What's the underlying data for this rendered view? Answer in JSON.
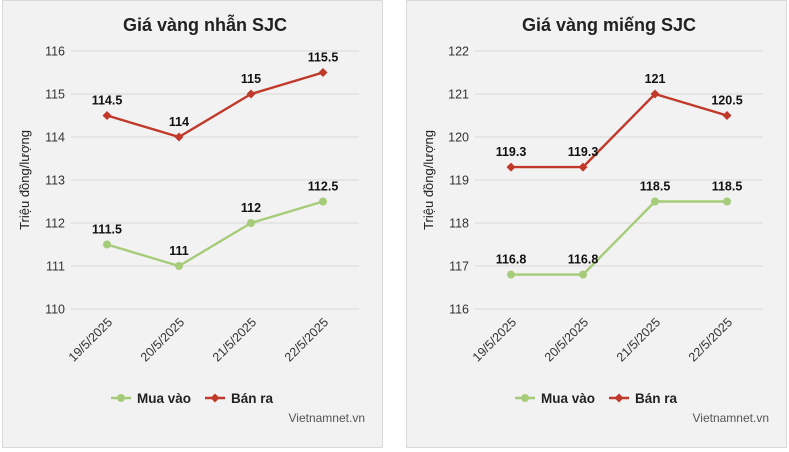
{
  "chart_data": [
    {
      "type": "line",
      "title": "Giá vàng nhẫn SJC",
      "ylabel": "Triệu đồng/lượng",
      "categories": [
        "19/5/2025",
        "20/5/2025",
        "21/5/2025",
        "22/5/2025"
      ],
      "ylim": [
        110,
        116
      ],
      "yticks": [
        "110",
        "111",
        "112",
        "113",
        "114",
        "115",
        "116"
      ],
      "series": [
        {
          "name": "Mua vào",
          "color": "#a6cc7a",
          "values": [
            111.5,
            111,
            112,
            112.5
          ],
          "labels": [
            "111.5",
            "111",
            "112",
            "112.5"
          ]
        },
        {
          "name": "Bán ra",
          "color": "#c0392b",
          "values": [
            114.5,
            114,
            115,
            115.5
          ],
          "labels": [
            "114.5",
            "114",
            "115",
            "115.5"
          ]
        }
      ],
      "grid": true,
      "legend": "bottom",
      "source": "Vietnamnet.vn"
    },
    {
      "type": "line",
      "title": "Giá vàng miếng SJC",
      "ylabel": "Triệu đồng/lượng",
      "categories": [
        "19/5/2025",
        "20/5/2025",
        "21/5/2025",
        "22/5/2025"
      ],
      "ylim": [
        116,
        122
      ],
      "yticks": [
        "116",
        "117",
        "118",
        "119",
        "120",
        "121",
        "122"
      ],
      "series": [
        {
          "name": "Mua vào",
          "color": "#a6cc7a",
          "values": [
            116.8,
            116.8,
            118.5,
            118.5
          ],
          "labels": [
            "116.8",
            "116.8",
            "118.5",
            "118.5"
          ]
        },
        {
          "name": "Bán ra",
          "color": "#c0392b",
          "values": [
            119.3,
            119.3,
            121,
            120.5
          ],
          "labels": [
            "119.3",
            "119.3",
            "121",
            "120.5"
          ]
        }
      ],
      "grid": true,
      "legend": "bottom",
      "source": "Vietnamnet.vn"
    }
  ]
}
